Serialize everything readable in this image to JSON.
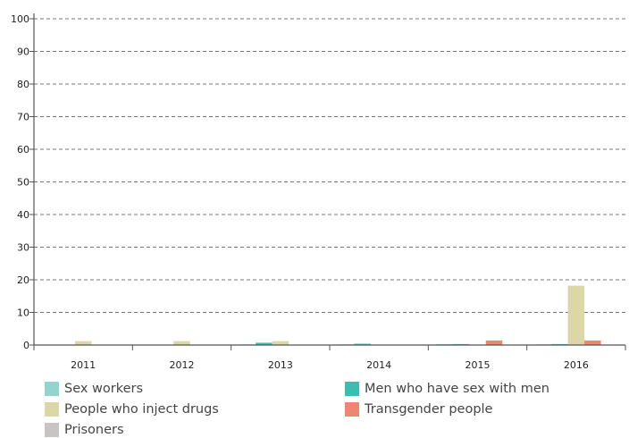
{
  "chart_data": {
    "type": "bar",
    "categories": [
      "2011",
      "2012",
      "2013",
      "2014",
      "2015",
      "2016"
    ],
    "series": [
      {
        "name": "Sex workers",
        "color": "#93d5cd",
        "values": [
          0.1,
          0.1,
          0.2,
          0.2,
          0.3,
          0.2
        ]
      },
      {
        "name": "Men who have sex with men",
        "color": "#3dbcb0",
        "values": [
          0,
          0,
          0.7,
          0.4,
          0.3,
          0.3
        ]
      },
      {
        "name": "People who inject drugs",
        "color": "#dcd7a6",
        "values": [
          1.2,
          1.2,
          1.2,
          0,
          0,
          18.2
        ]
      },
      {
        "name": "Transgender people",
        "color": "#ee8674",
        "values": [
          0,
          0,
          0,
          0,
          1.4,
          1.4
        ]
      },
      {
        "name": "Prisoners",
        "color": "#c9c4c4",
        "values": [
          0,
          0,
          0,
          0,
          0,
          0
        ]
      }
    ],
    "yticks": [
      "0",
      "10",
      "20",
      "30",
      "40",
      "50",
      "60",
      "70",
      "80",
      "90",
      "100"
    ],
    "ylim": [
      0,
      100
    ],
    "grid": true,
    "legend_position": "bottom",
    "title": "",
    "xlabel": "",
    "ylabel": ""
  }
}
